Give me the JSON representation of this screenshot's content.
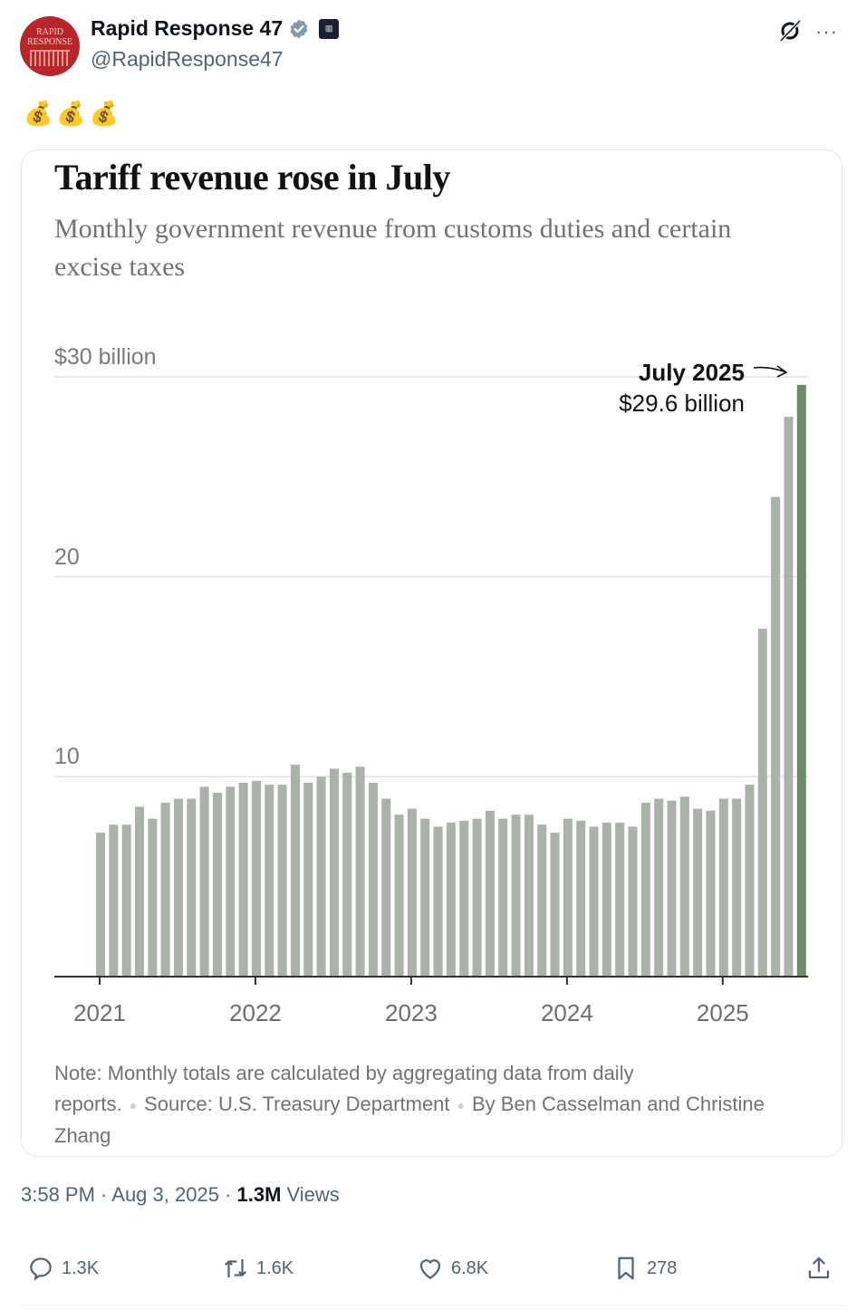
{
  "post": {
    "author_name": "Rapid Response 47",
    "handle": "@RapidResponse47",
    "avatar_text": [
      "RAPID",
      "RESPONSE"
    ],
    "verified_icon": "verified-badge-icon",
    "affiliation_icon": "white-house-badge-icon",
    "text": "💰💰💰",
    "timestamp": "3:58 PM · Aug 3, 2025 · ",
    "views_count": "1.3M",
    "views_label": " Views",
    "grok_icon": "grok-icon",
    "more_label": "···"
  },
  "actions": {
    "replies": "1.3K",
    "reposts": "1.6K",
    "likes": "6.8K",
    "bookmarks": "278"
  },
  "colors": {
    "bar": "#a9b3a7",
    "bar_highlight": "#6e8a6b",
    "grid": "#e2e2e2",
    "axis": "#333333"
  },
  "chart_data": {
    "type": "bar",
    "title": "Tariff revenue rose in July",
    "subtitle": "Monthly government revenue from customs duties and certain excise taxes",
    "xlabel": "",
    "ylabel": "",
    "ylim": [
      0,
      30
    ],
    "y_ticks": [
      {
        "value": 10,
        "label": "10"
      },
      {
        "value": 20,
        "label": "20"
      },
      {
        "value": 30,
        "label": "$30 billion"
      }
    ],
    "x_ticks": [
      {
        "index": 0,
        "label": "2021"
      },
      {
        "index": 12,
        "label": "2022"
      },
      {
        "index": 24,
        "label": "2023"
      },
      {
        "index": 36,
        "label": "2024"
      },
      {
        "index": 48,
        "label": "2025"
      }
    ],
    "grid": true,
    "categories": [
      "Jan 2021",
      "Feb 2021",
      "Mar 2021",
      "Apr 2021",
      "May 2021",
      "Jun 2021",
      "Jul 2021",
      "Aug 2021",
      "Sep 2021",
      "Oct 2021",
      "Nov 2021",
      "Dec 2021",
      "Jan 2022",
      "Feb 2022",
      "Mar 2022",
      "Apr 2022",
      "May 2022",
      "Jun 2022",
      "Jul 2022",
      "Aug 2022",
      "Sep 2022",
      "Oct 2022",
      "Nov 2022",
      "Dec 2022",
      "Jan 2023",
      "Feb 2023",
      "Mar 2023",
      "Apr 2023",
      "May 2023",
      "Jun 2023",
      "Jul 2023",
      "Aug 2023",
      "Sep 2023",
      "Oct 2023",
      "Nov 2023",
      "Dec 2023",
      "Jan 2024",
      "Feb 2024",
      "Mar 2024",
      "Apr 2024",
      "May 2024",
      "Jun 2024",
      "Jul 2024",
      "Aug 2024",
      "Sep 2024",
      "Oct 2024",
      "Nov 2024",
      "Dec 2024",
      "Jan 2025",
      "Feb 2025",
      "Mar 2025",
      "Apr 2025",
      "May 2025",
      "Jun 2025",
      "Jul 2025"
    ],
    "values": [
      7.2,
      7.6,
      7.6,
      8.5,
      7.9,
      8.7,
      8.9,
      8.9,
      9.5,
      9.2,
      9.5,
      9.7,
      9.8,
      9.6,
      9.6,
      10.6,
      9.7,
      10.0,
      10.4,
      10.2,
      10.5,
      9.7,
      8.9,
      8.1,
      8.4,
      7.9,
      7.5,
      7.7,
      7.8,
      7.9,
      8.3,
      7.9,
      8.1,
      8.1,
      7.6,
      7.2,
      7.9,
      7.8,
      7.5,
      7.7,
      7.7,
      7.5,
      8.7,
      8.9,
      8.8,
      9.0,
      8.4,
      8.3,
      8.9,
      8.9,
      9.6,
      17.4,
      24.0,
      28.0,
      29.6
    ],
    "highlight_index": 54,
    "annotation": {
      "label": "July 2025",
      "value_text": "$29.6 billion",
      "arrow": "right-arrow"
    },
    "note": "Note: Monthly totals are calculated by aggregating data from daily reports.",
    "source": "Source: U.S. Treasury Department",
    "byline": "By Ben Casselman and Christine Zhang"
  }
}
